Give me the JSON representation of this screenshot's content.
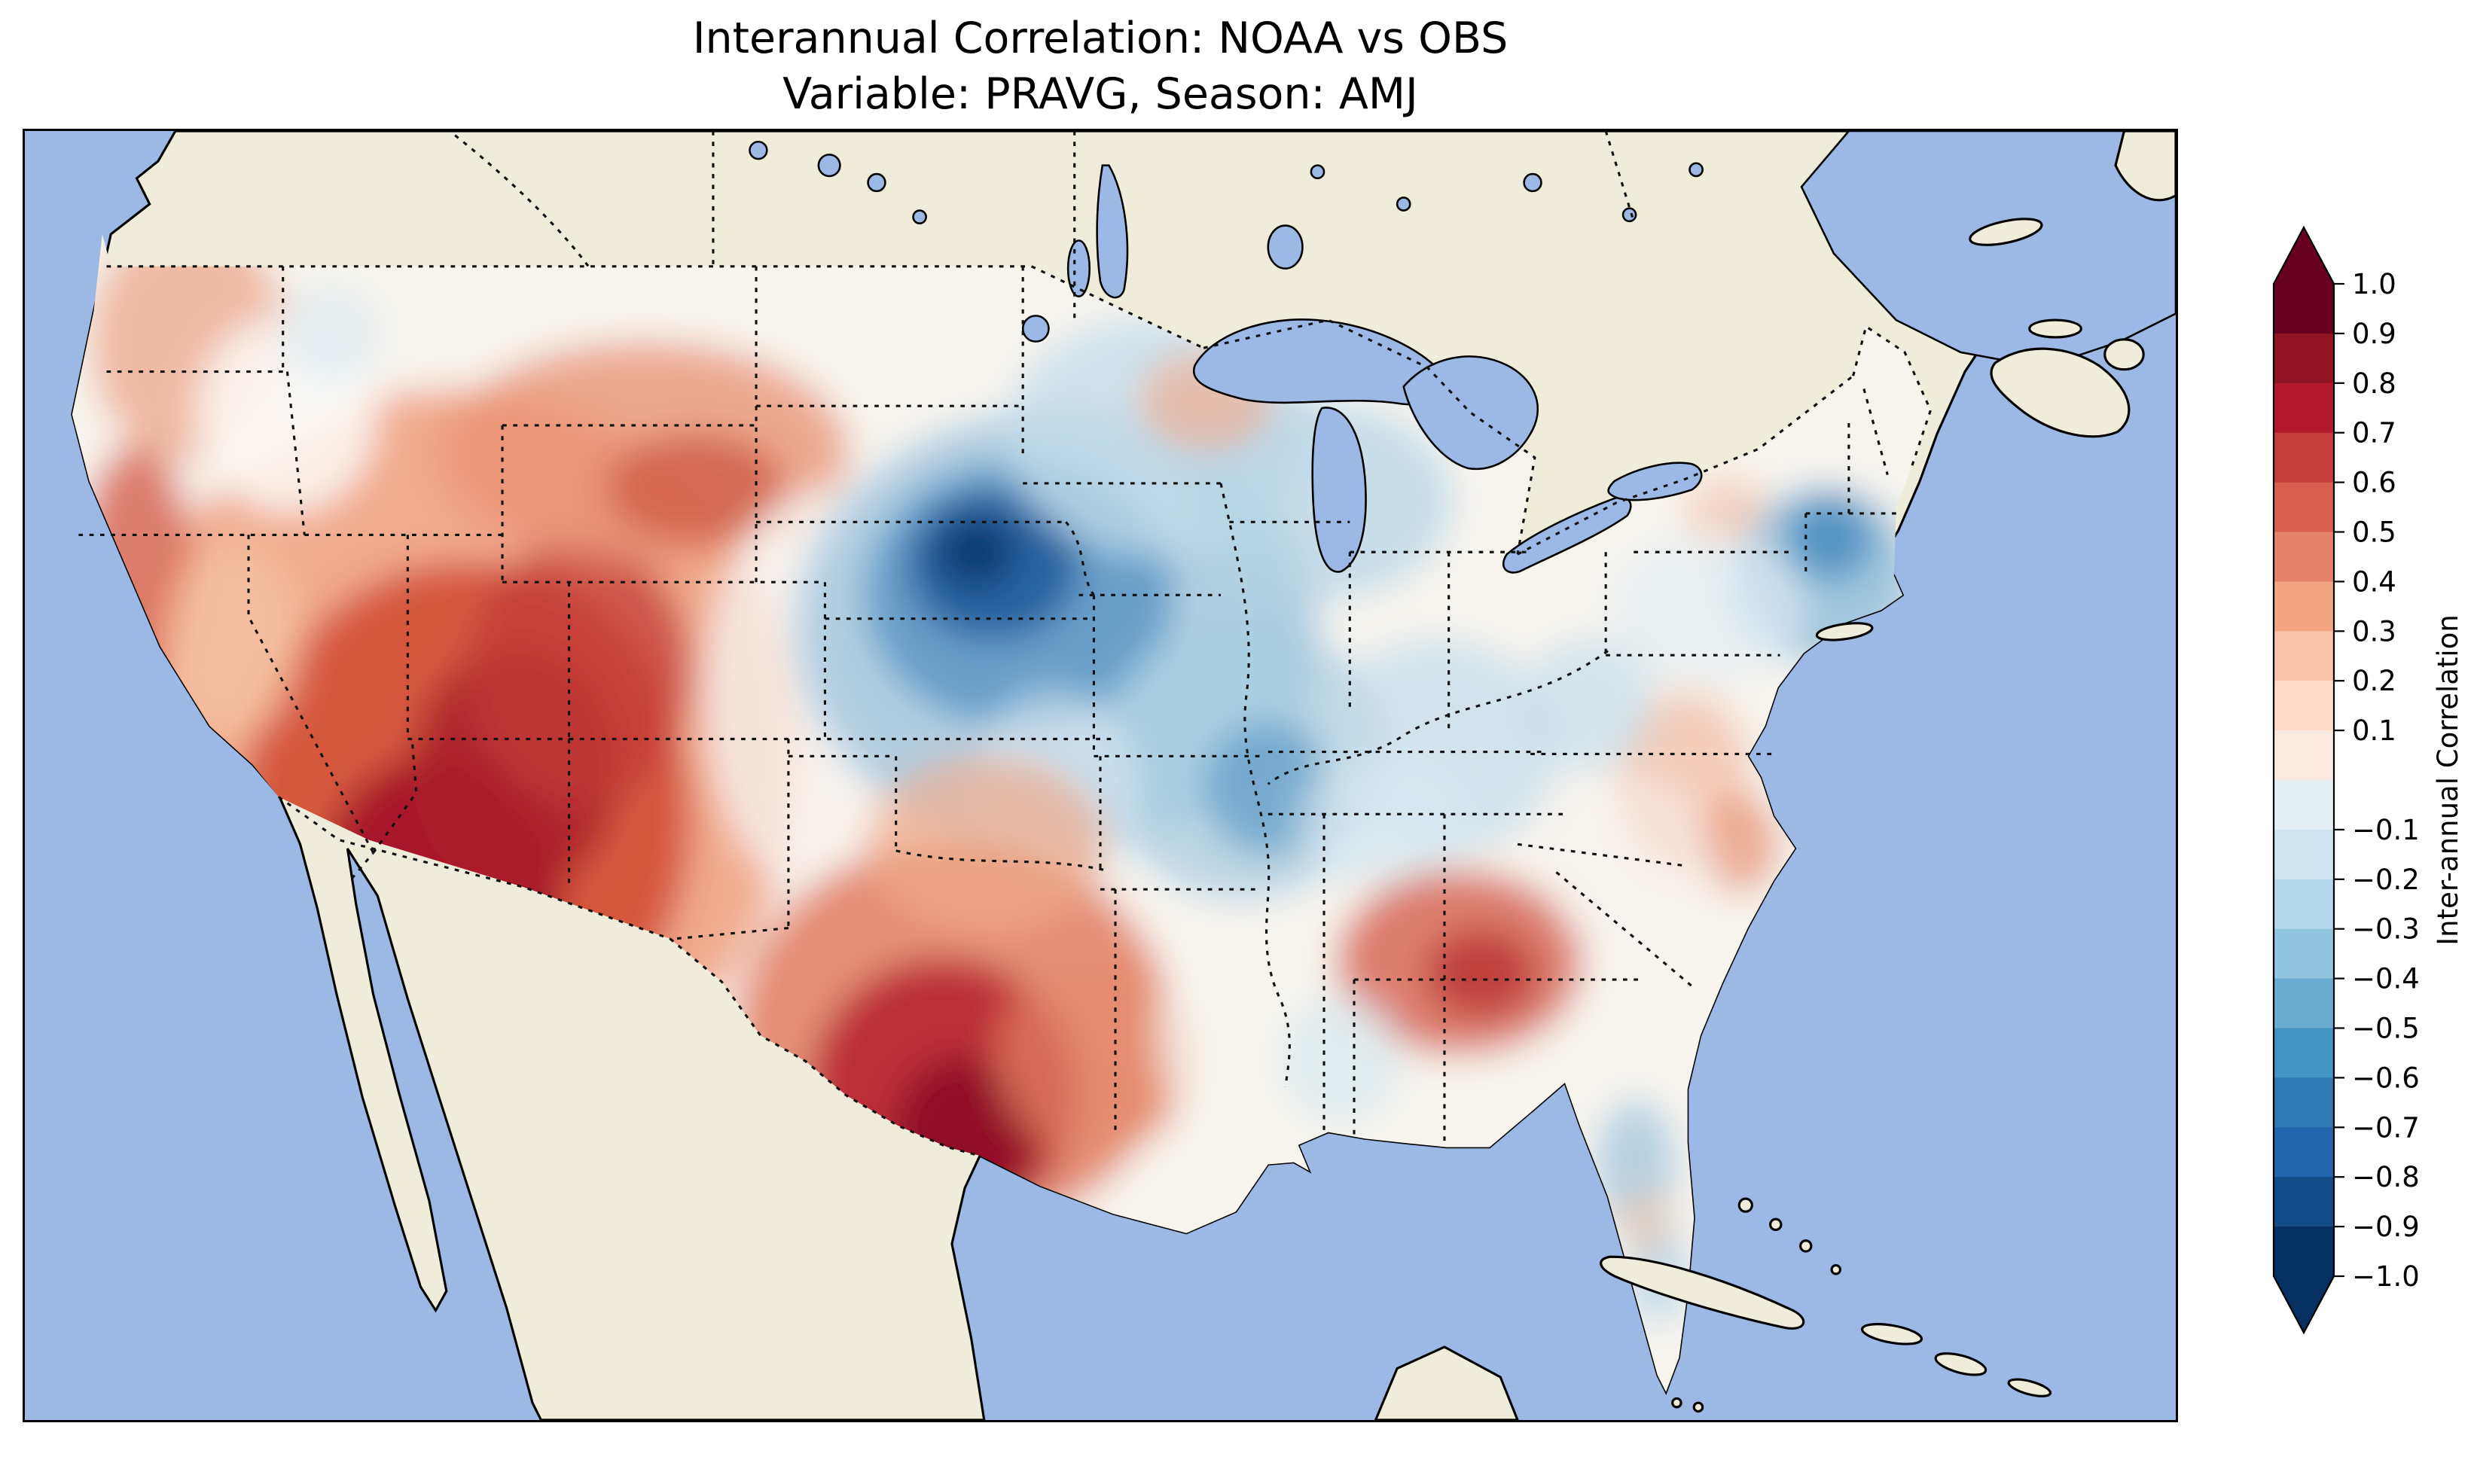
{
  "figure": {
    "title_line1": "Interannual Correlation: NOAA vs OBS",
    "title_line2": "Variable: PRAVG, Season: AMJ"
  },
  "map": {
    "ocean_color": "#9cb8e4",
    "land_color": "#efecda",
    "field_base_color": "#f7f4ee",
    "frame_color": "#000000"
  },
  "chart_data": {
    "type": "heatmap",
    "title": "Interannual Correlation: NOAA vs OBS",
    "subtitle": "Variable: PRAVG, Season: AMJ",
    "variable": "PRAVG",
    "season": "AMJ",
    "datasets_compared": [
      "NOAA",
      "OBS"
    ],
    "map_region": "Continental United States with surrounding Canada, Mexico, Gulf of Mexico and Atlantic/Pacific oceans",
    "colormap": "RdBu_r (red = positive correlation, blue = negative correlation)",
    "map_features": [
      "dotted state and national boundaries",
      "Great Lakes",
      "coastlines",
      "ocean shading",
      "land shading outside US"
    ],
    "colorbar": {
      "label": "Inter-annual Correlation",
      "min": -1.0,
      "max": 1.0,
      "level_step": 0.1,
      "extend": "both",
      "ticks": [
        "1.0",
        "0.9",
        "0.8",
        "0.7",
        "0.6",
        "0.5",
        "0.4",
        "0.3",
        "0.2",
        "0.1",
        "−0.1",
        "−0.2",
        "−0.3",
        "−0.4",
        "−0.5",
        "−0.6",
        "−0.7",
        "−0.8",
        "−0.9",
        "−1.0"
      ],
      "colors_top_to_bottom": [
        "#67001f",
        "#901423",
        "#b2182b",
        "#c43c3c",
        "#d6604d",
        "#e58267",
        "#f4a582",
        "#f9c3a9",
        "#fddbc7",
        "#faeae1",
        "#e6eff4",
        "#d1e5f0",
        "#b3d6e8",
        "#92c5de",
        "#6aacd0",
        "#4393c3",
        "#2f79b5",
        "#2166ac",
        "#134c87",
        "#053061"
      ]
    },
    "regions_summary": [
      {
        "region": "Great Basin / Four Corners (NV, UT, AZ, western CO)",
        "correlation": 0.9
      },
      {
        "region": "Southern California / Arizona border",
        "correlation": 0.8
      },
      {
        "region": "California coast",
        "correlation": 0.5
      },
      {
        "region": "Pacific Northwest (WA, OR)",
        "correlation": 0.3
      },
      {
        "region": "Northern Rockies (MT, WY)",
        "correlation": 0.5
      },
      {
        "region": "Central and West Texas",
        "correlation": 0.8
      },
      {
        "region": "Oklahoma",
        "correlation": 0.4
      },
      {
        "region": "Nebraska / South Dakota / western Iowa core",
        "correlation": -0.8
      },
      {
        "region": "Upper Midwest (MN, WI)",
        "correlation": -0.4
      },
      {
        "region": "Missouri / Illinois",
        "correlation": -0.5
      },
      {
        "region": "Ohio Valley / Kentucky",
        "correlation": -0.3
      },
      {
        "region": "New England",
        "correlation": -0.5
      },
      {
        "region": "Mid-Atlantic coast (VA, NC)",
        "correlation": 0.4
      },
      {
        "region": "Alabama / Georgia",
        "correlation": 0.6
      },
      {
        "region": "Mississippi / Louisiana east",
        "correlation": -0.2
      },
      {
        "region": "Florida peninsula",
        "correlation": -0.3
      },
      {
        "region": "Kansas transition zone",
        "correlation": 0.1
      }
    ]
  }
}
